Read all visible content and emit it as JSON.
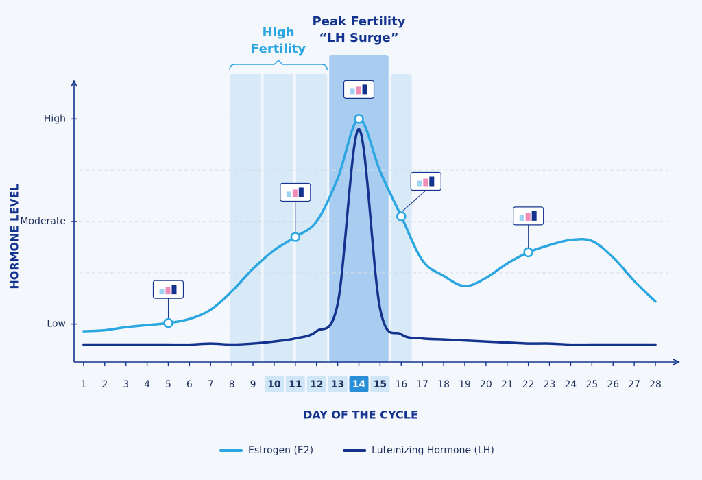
{
  "chart_data": {
    "type": "line",
    "x_label": "DAY OF THE CYCLE",
    "y_label": "HORMONE LEVEL",
    "x": [
      1,
      2,
      3,
      4,
      5,
      6,
      7,
      8,
      9,
      10,
      11,
      12,
      13,
      14,
      15,
      16,
      17,
      18,
      19,
      20,
      21,
      22,
      23,
      24,
      25,
      26,
      27,
      28
    ],
    "xlim": [
      0.55,
      29.1
    ],
    "ylim": [
      0.63,
      3.37
    ],
    "yticks": [
      {
        "value": 1,
        "label": "Low"
      },
      {
        "value": 2,
        "label": "Moderate"
      },
      {
        "value": 3,
        "label": "High"
      }
    ],
    "minor_yticks": [
      1.5,
      2.5
    ],
    "grid": true,
    "series": [
      {
        "name": "Estrogen (E2)",
        "color": "#2ba6e1",
        "values": [
          0.93,
          0.94,
          0.97,
          0.99,
          1.01,
          1.05,
          1.14,
          1.32,
          1.54,
          1.72,
          1.85,
          2.0,
          2.42,
          3.0,
          2.49,
          2.05,
          1.62,
          1.47,
          1.37,
          1.45,
          1.59,
          1.7,
          1.77,
          1.82,
          1.81,
          1.65,
          1.42,
          1.22
        ],
        "callouts": [
          4,
          10,
          13,
          15,
          21
        ]
      },
      {
        "name": "Luteinizing Hormone (LH)",
        "color": "#14338f",
        "values": [
          0.8,
          0.8,
          0.8,
          0.8,
          0.8,
          0.8,
          0.81,
          0.8,
          0.81,
          0.83,
          0.86,
          0.93,
          1.2,
          2.9,
          1.15,
          0.9,
          0.86,
          0.85,
          0.84,
          0.83,
          0.82,
          0.81,
          0.81,
          0.8,
          0.8,
          0.8,
          0.8,
          0.8
        ]
      }
    ],
    "bands": [
      {
        "label": "High Fertility",
        "start": 7.9,
        "end": 12.5,
        "color": "#d8eaf8"
      },
      {
        "label": "Peak Fertility",
        "sublabel": "“LH Surge”",
        "start": 12.6,
        "end": 15.4,
        "color": "#a9cdf0"
      },
      {
        "start": 15.5,
        "end": 16.5,
        "color": "#d8eaf8"
      }
    ],
    "highlighted_days": [
      10,
      11,
      12,
      13,
      15
    ],
    "peak_day": 14
  }
}
